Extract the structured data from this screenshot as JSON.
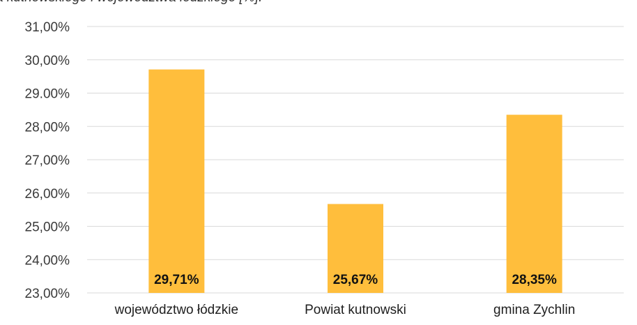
{
  "chart_data": {
    "type": "bar",
    "title": "a kutnowskiego i województwa łódzkiego [%].",
    "categories": [
      "województwo łódzkie",
      "Powiat kutnowski",
      "gmina Zychlin"
    ],
    "values": [
      29.71,
      25.67,
      28.35
    ],
    "data_labels": [
      "29,71%",
      "25,67%",
      "28,35%"
    ],
    "ylim": [
      23,
      31
    ],
    "yticks": [
      {
        "value": 31,
        "label": "31,00%"
      },
      {
        "value": 30,
        "label": "30,00%"
      },
      {
        "value": 29,
        "label": "29.00%"
      },
      {
        "value": 28,
        "label": "28,00%"
      },
      {
        "value": 27,
        "label": "27,00%"
      },
      {
        "value": 26,
        "label": "26,00%"
      },
      {
        "value": 25,
        "label": "25,00%"
      },
      {
        "value": 24,
        "label": "24,00%"
      },
      {
        "value": 23,
        "label": "23,00%"
      }
    ],
    "grid": true,
    "bar_color": "#FFBE3C",
    "grid_color": "#d9d9d9"
  }
}
